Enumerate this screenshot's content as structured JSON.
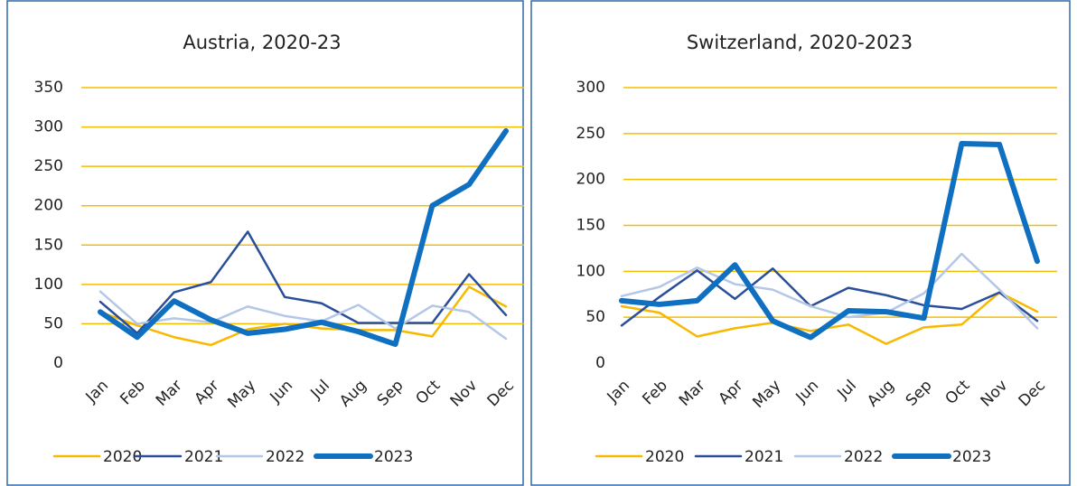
{
  "chart_data": [
    {
      "type": "line",
      "title": "Austria, 2020-23",
      "categories": [
        "Jan",
        "Feb",
        "Mar",
        "Apr",
        "May",
        "Jun",
        "Jul",
        "Aug",
        "Sep",
        "Oct",
        "Nov",
        "Dec"
      ],
      "series": [
        {
          "name": "2020",
          "color": "#f7b900",
          "values": [
            65,
            48,
            33,
            23,
            43,
            50,
            44,
            42,
            42,
            34,
            97,
            72
          ]
        },
        {
          "name": "2021",
          "color": "#2a4f9a",
          "values": [
            78,
            38,
            90,
            103,
            167,
            84,
            76,
            51,
            51,
            51,
            113,
            61
          ]
        },
        {
          "name": "2022",
          "color": "#b4c7e7",
          "values": [
            91,
            50,
            57,
            52,
            72,
            60,
            53,
            74,
            44,
            73,
            65,
            31
          ]
        },
        {
          "name": "2023",
          "color": "#0f6fc0",
          "values": [
            65,
            33,
            79,
            55,
            38,
            43,
            52,
            40,
            24,
            200,
            227,
            295
          ]
        }
      ],
      "ylim": [
        0,
        350
      ],
      "yticks": [
        0,
        50,
        100,
        150,
        200,
        250,
        300,
        350
      ],
      "grid": true,
      "legend": "bottom"
    },
    {
      "type": "line",
      "title": "Switzerland, 2020-2023",
      "categories": [
        "Jan",
        "Feb",
        "Mar",
        "Apr",
        "May",
        "Jun",
        "Jul",
        "Aug",
        "Sep",
        "Oct",
        "Nov",
        "Dec"
      ],
      "series": [
        {
          "name": "2020",
          "color": "#f7b900",
          "values": [
            62,
            55,
            29,
            38,
            44,
            35,
            42,
            21,
            39,
            42,
            77,
            56
          ]
        },
        {
          "name": "2021",
          "color": "#2a4f9a",
          "values": [
            41,
            72,
            101,
            70,
            103,
            62,
            82,
            74,
            63,
            59,
            77,
            46
          ]
        },
        {
          "name": "2022",
          "color": "#b4c7e7",
          "values": [
            73,
            83,
            104,
            86,
            80,
            62,
            50,
            55,
            76,
            119,
            80,
            38
          ]
        },
        {
          "name": "2023",
          "color": "#0f6fc0",
          "values": [
            68,
            64,
            68,
            107,
            46,
            28,
            57,
            56,
            49,
            239,
            238,
            111
          ]
        }
      ],
      "ylim": [
        0,
        300
      ],
      "yticks": [
        0,
        50,
        100,
        150,
        200,
        250,
        300
      ],
      "grid": true,
      "legend": "bottom"
    }
  ]
}
